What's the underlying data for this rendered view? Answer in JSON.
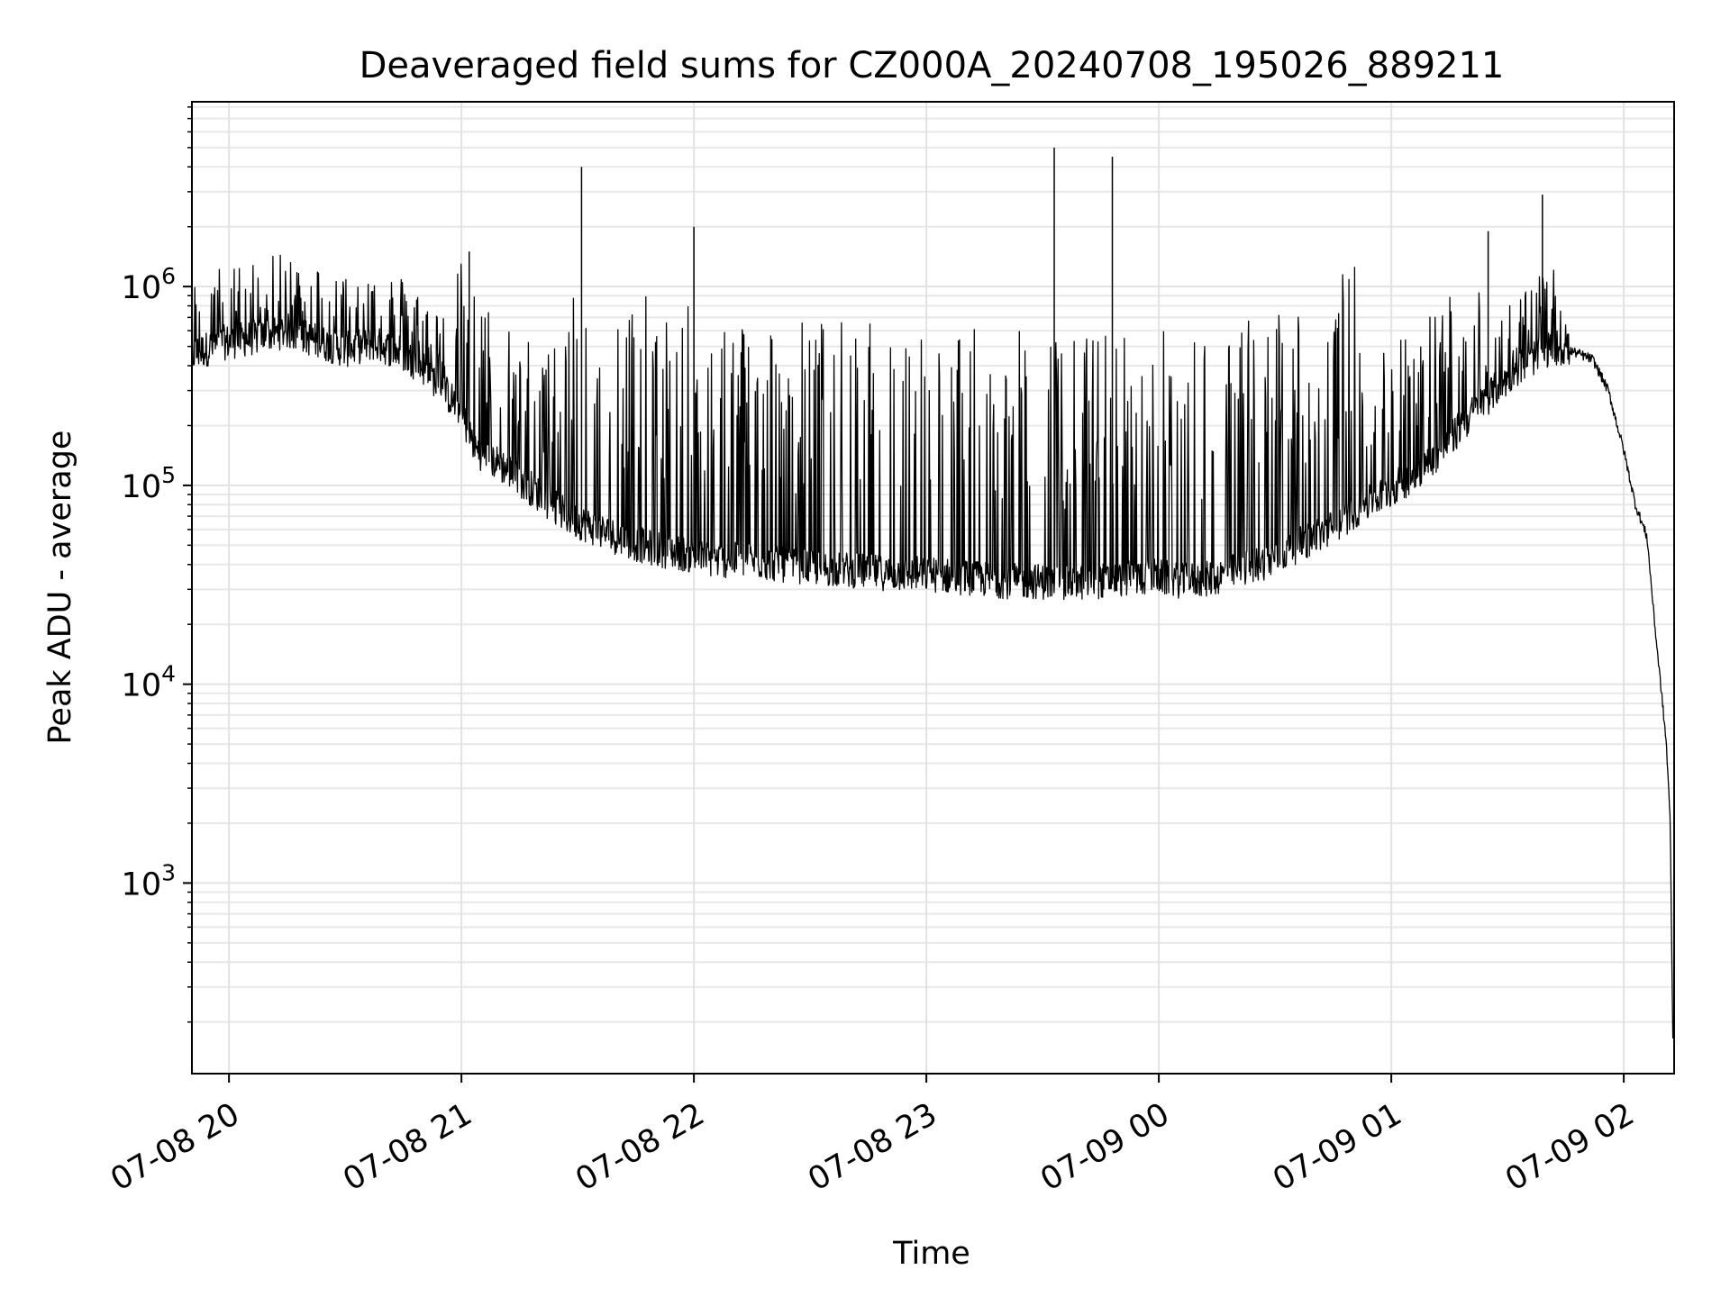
{
  "chart_data": {
    "type": "line",
    "title": "Deaveraged field sums for CZ000A_20240708_195026_889211",
    "xlabel": "Time",
    "ylabel": "Peak ADU - average",
    "yscale": "log",
    "ylim": [
      110,
      8500000
    ],
    "xlim": [
      "2024-07-08 19:50:26",
      "2024-07-09 02:13:00"
    ],
    "grid": true,
    "line_color": "#000000",
    "x_ticks": [
      {
        "t": "2024-07-08 20:00",
        "label": "07-08 20"
      },
      {
        "t": "2024-07-08 21:00",
        "label": "07-08 21"
      },
      {
        "t": "2024-07-08 22:00",
        "label": "07-08 22"
      },
      {
        "t": "2024-07-08 23:00",
        "label": "07-08 23"
      },
      {
        "t": "2024-07-09 00:00",
        "label": "07-09 00"
      },
      {
        "t": "2024-07-09 01:00",
        "label": "07-09 01"
      },
      {
        "t": "2024-07-09 02:00",
        "label": "07-09 02"
      }
    ],
    "y_ticks": [
      {
        "value": 1000,
        "base": "10",
        "exp": "3"
      },
      {
        "value": 10000,
        "base": "10",
        "exp": "4"
      },
      {
        "value": 100000,
        "base": "10",
        "exp": "5"
      },
      {
        "value": 1000000,
        "base": "10",
        "exp": "6"
      }
    ],
    "series": [
      {
        "x": [
          "2024-07-08 19:50",
          "2024-07-08 19:58",
          "2024-07-08 20:08",
          "2024-07-08 20:15",
          "2024-07-08 20:23",
          "2024-07-08 20:30",
          "2024-07-08 20:37",
          "2024-07-08 20:44",
          "2024-07-08 20:51",
          "2024-07-08 20:59",
          "2024-07-08 21:04",
          "2024-07-08 21:12",
          "2024-07-08 21:20",
          "2024-07-08 21:27",
          "2024-07-08 21:35",
          "2024-07-08 21:43",
          "2024-07-08 21:50",
          "2024-07-08 21:58",
          "2024-07-08 22:05",
          "2024-07-08 22:14",
          "2024-07-08 22:22",
          "2024-07-08 22:29",
          "2024-07-08 22:36",
          "2024-07-08 22:44",
          "2024-07-08 22:51",
          "2024-07-08 22:58",
          "2024-07-08 23:06",
          "2024-07-08 23:13",
          "2024-07-08 23:21",
          "2024-07-08 23:28",
          "2024-07-08 23:36",
          "2024-07-08 23:44",
          "2024-07-08 23:52",
          "2024-07-08 23:59",
          "2024-07-09 00:06",
          "2024-07-09 00:14",
          "2024-07-09 00:21",
          "2024-07-09 00:29",
          "2024-07-09 00:36",
          "2024-07-09 00:44",
          "2024-07-09 00:51",
          "2024-07-09 00:58",
          "2024-07-09 01:05",
          "2024-07-09 01:13",
          "2024-07-09 01:20",
          "2024-07-09 01:28",
          "2024-07-09 01:35",
          "2024-07-09 01:42",
          "2024-07-09 01:47",
          "2024-07-09 01:52",
          "2024-07-09 01:56",
          "2024-07-09 02:00",
          "2024-07-09 02:03",
          "2024-07-09 02:06",
          "2024-07-09 02:08",
          "2024-07-09 02:10",
          "2024-07-09 02:11",
          "2024-07-09 02:12",
          "2024-07-09 02:12:40"
        ],
        "y": [
          450000,
          520000,
          560000,
          600000,
          530000,
          480000,
          520000,
          470000,
          380000,
          250000,
          150000,
          120000,
          90000,
          70000,
          60000,
          52000,
          48000,
          45000,
          42000,
          42000,
          40000,
          39000,
          38000,
          37000,
          36000,
          36000,
          35000,
          34000,
          33000,
          33000,
          32000,
          33000,
          34000,
          35000,
          33000,
          34000,
          38000,
          42000,
          50000,
          60000,
          75000,
          90000,
          110000,
          150000,
          220000,
          320000,
          420000,
          500000,
          470000,
          430000,
          300000,
          150000,
          80000,
          55000,
          20000,
          8000,
          5000,
          2000,
          160
        ]
      }
    ],
    "spikes": [
      {
        "t": "2024-07-08 21:31",
        "y": 4000000
      },
      {
        "t": "2024-07-08 23:33",
        "y": 5000000
      },
      {
        "t": "2024-07-08 23:48",
        "y": 4500000
      },
      {
        "t": "2024-07-09 01:39",
        "y": 2900000
      },
      {
        "t": "2024-07-09 01:25",
        "y": 1900000
      },
      {
        "t": "2024-07-08 22:00",
        "y": 2000000
      },
      {
        "t": "2024-07-08 21:02",
        "y": 1500000
      }
    ]
  }
}
